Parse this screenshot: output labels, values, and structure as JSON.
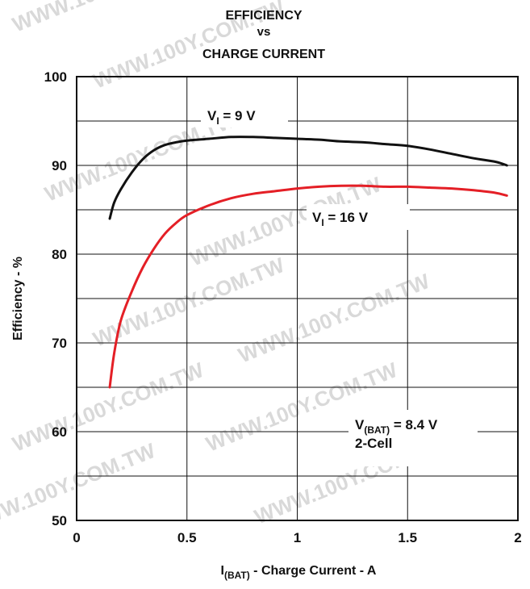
{
  "chart_data": {
    "type": "line",
    "title_lines": [
      "EFFICIENCY",
      "vs",
      "CHARGE CURRENT"
    ],
    "xlabel": {
      "prefix": "I",
      "sub": "(BAT)",
      "suffix": " - Charge Current - A"
    },
    "ylabel": "Efficiency - %",
    "xlim": [
      0,
      2
    ],
    "ylim": [
      50,
      100
    ],
    "x_ticks": [
      0,
      0.5,
      1,
      1.5,
      2
    ],
    "x_tick_labels": [
      "0",
      "0.5",
      "1",
      "1.5",
      "2"
    ],
    "y_ticks": [
      50,
      60,
      70,
      80,
      90,
      100
    ],
    "y_tick_labels": [
      "50",
      "60",
      "70",
      "80",
      "90",
      "100"
    ],
    "grid": true,
    "series": [
      {
        "name": "VI = 9 V",
        "color": "#111111",
        "x": [
          0.15,
          0.17,
          0.2,
          0.25,
          0.3,
          0.35,
          0.4,
          0.45,
          0.5,
          0.6,
          0.7,
          0.8,
          0.9,
          1.0,
          1.1,
          1.2,
          1.3,
          1.4,
          1.5,
          1.6,
          1.7,
          1.8,
          1.9,
          1.95
        ],
        "y": [
          84.0,
          85.8,
          87.3,
          89.2,
          90.7,
          91.7,
          92.3,
          92.6,
          92.8,
          93.0,
          93.2,
          93.2,
          93.1,
          93.0,
          92.9,
          92.7,
          92.6,
          92.4,
          92.2,
          91.8,
          91.3,
          90.8,
          90.4,
          90.0
        ]
      },
      {
        "name": "VI = 16 V",
        "color": "#e41f26",
        "x": [
          0.15,
          0.17,
          0.2,
          0.25,
          0.3,
          0.35,
          0.4,
          0.45,
          0.5,
          0.6,
          0.7,
          0.8,
          0.9,
          1.0,
          1.1,
          1.2,
          1.3,
          1.4,
          1.5,
          1.6,
          1.7,
          1.8,
          1.9,
          1.95
        ],
        "y": [
          65.0,
          68.8,
          72.5,
          75.8,
          78.5,
          80.6,
          82.3,
          83.5,
          84.4,
          85.5,
          86.3,
          86.8,
          87.1,
          87.4,
          87.6,
          87.7,
          87.7,
          87.6,
          87.6,
          87.5,
          87.4,
          87.2,
          86.9,
          86.6
        ]
      }
    ],
    "annotations": [
      {
        "main": "V",
        "sub": "I",
        "rest": " = 9 V"
      },
      {
        "main": "V",
        "sub": "I",
        "rest": " = 16 V"
      },
      {
        "main": "V",
        "sub": "(BAT)",
        "rest": " = 8.4 V",
        "line2": "2-Cell"
      }
    ]
  },
  "watermark": "WWW.100Y.COM.TW",
  "colors": {
    "background": "#ffffff",
    "axis": "#111111",
    "grid": "#111111",
    "watermark": "#d9d9d9"
  }
}
